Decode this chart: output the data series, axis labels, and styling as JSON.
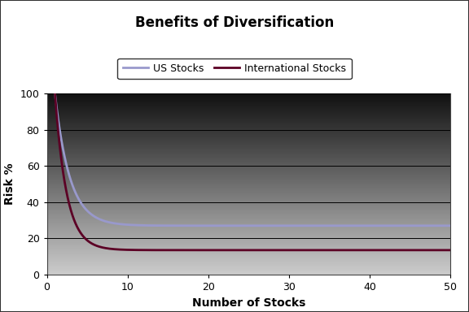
{
  "title": "Benefits of Diversification",
  "xlabel": "Number of Stocks",
  "ylabel": "Risk %",
  "xlim": [
    0,
    50
  ],
  "ylim": [
    0,
    100
  ],
  "xticks": [
    0,
    10,
    20,
    30,
    40,
    50
  ],
  "yticks": [
    0,
    20,
    40,
    60,
    80,
    100
  ],
  "us_color": "#9999cc",
  "intl_color": "#5c0025",
  "us_asymptote": 27.0,
  "intl_asymptote": 13.5,
  "us_decay": 0.58,
  "intl_decay": 0.5,
  "us_label": "US Stocks",
  "intl_label": "International Stocks",
  "background_top": "#111111",
  "background_bottom": "#cccccc",
  "title_fontsize": 12,
  "axis_label_fontsize": 10,
  "tick_fontsize": 9,
  "line_width": 2.0,
  "fig_bg_color": "#ffffff",
  "border_color": "#444444",
  "grid_color": "#000000",
  "grid_lw": 0.7
}
